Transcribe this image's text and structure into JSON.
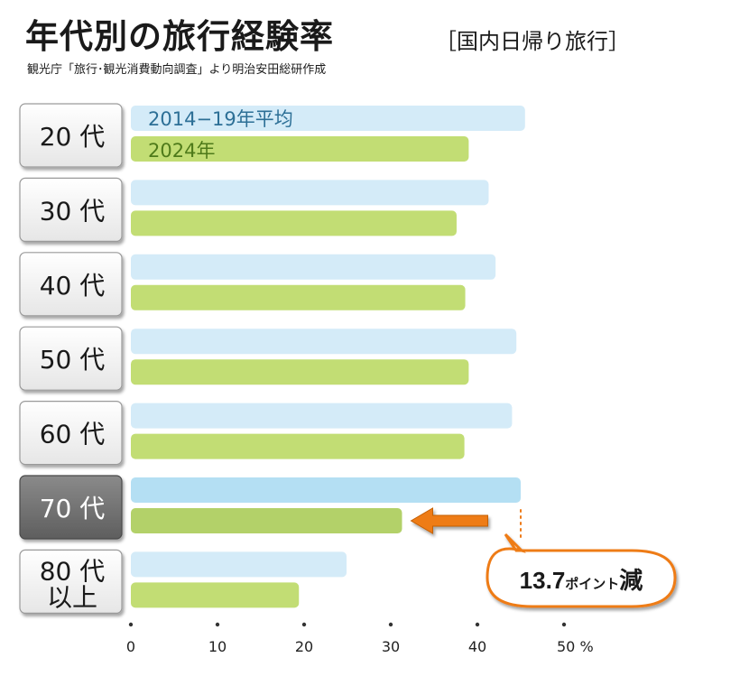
{
  "title": "年代別の旅行経験率",
  "subtitle": "［国内日帰り旅行］",
  "source": "観光庁「旅行･観光消費動向調査」より明治安田総研作成",
  "colors": {
    "series_1": "#d4ebf8",
    "series_1_highlight": "#b4dff3",
    "series_2": "#c2dd74",
    "series_2_highlight": "#b3d169",
    "accent": "#ee7b19"
  },
  "chart_data": {
    "type": "bar",
    "orientation": "horizontal",
    "categories": [
      "20代",
      "30代",
      "40代",
      "50代",
      "60代",
      "70代",
      "80代以上"
    ],
    "series": [
      {
        "name": "2014−19年平均",
        "values": [
          45.5,
          41.3,
          42.1,
          44.5,
          44.0,
          45.0,
          24.9
        ]
      },
      {
        "name": "2024年",
        "values": [
          39.0,
          37.6,
          38.6,
          39.0,
          38.5,
          31.3,
          19.4
        ]
      }
    ],
    "xticks": [
      "0",
      "10",
      "20",
      "30",
      "40",
      "50"
    ],
    "xunit": "%",
    "xlim": [
      0,
      50
    ],
    "highlight_category": "70代",
    "annotation": {
      "number": "13.7",
      "suffix": "ポイント",
      "tail": "減"
    }
  }
}
